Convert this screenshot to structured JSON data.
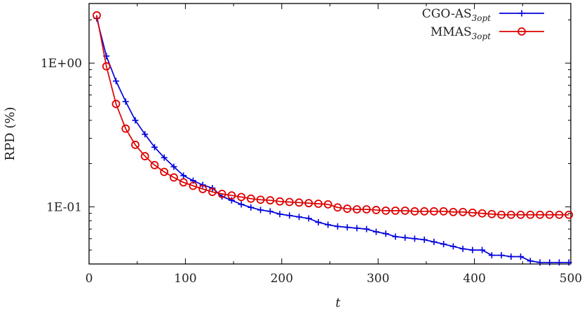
{
  "chart_data": {
    "type": "line",
    "title": "",
    "xlabel": "t",
    "ylabel": "RPD (%)",
    "xlim": [
      0,
      500
    ],
    "ylim": [
      0.04,
      2.6
    ],
    "yscale": "log",
    "xticks": [
      0,
      100,
      200,
      300,
      400,
      500
    ],
    "xtick_labels": [
      "0",
      "100",
      "200",
      "300",
      "400",
      "500"
    ],
    "yticks": [
      1.0,
      0.1
    ],
    "ytick_labels": [
      "1E+00",
      "1E-01"
    ],
    "legend_position": "top-right",
    "grid": false,
    "series": [
      {
        "name": "CGO-AS",
        "name_sub": "3opt",
        "color": "#0000dd",
        "marker": "plus",
        "x": [
          8,
          18,
          28,
          38,
          48,
          58,
          68,
          78,
          88,
          98,
          108,
          118,
          128,
          138,
          148,
          158,
          168,
          178,
          188,
          198,
          208,
          218,
          228,
          238,
          248,
          258,
          268,
          278,
          288,
          298,
          308,
          318,
          328,
          338,
          348,
          358,
          368,
          378,
          388,
          398,
          408,
          418,
          428,
          438,
          448,
          458,
          468,
          478,
          488,
          498
        ],
        "values": [
          2.05,
          1.12,
          0.75,
          0.54,
          0.4,
          0.32,
          0.26,
          0.22,
          0.19,
          0.165,
          0.152,
          0.142,
          0.135,
          0.118,
          0.111,
          0.104,
          0.099,
          0.095,
          0.093,
          0.089,
          0.087,
          0.085,
          0.083,
          0.078,
          0.075,
          0.073,
          0.072,
          0.071,
          0.07,
          0.067,
          0.065,
          0.062,
          0.061,
          0.06,
          0.059,
          0.057,
          0.055,
          0.053,
          0.051,
          0.05,
          0.05,
          0.046,
          0.046,
          0.045,
          0.045,
          0.042,
          0.041,
          0.041,
          0.041,
          0.041
        ]
      },
      {
        "name": "MMAS",
        "name_sub": "3opt",
        "color": "#dd0000",
        "marker": "circle",
        "x": [
          8,
          18,
          28,
          38,
          48,
          58,
          68,
          78,
          88,
          98,
          108,
          118,
          128,
          138,
          148,
          158,
          168,
          178,
          188,
          198,
          208,
          218,
          228,
          238,
          248,
          258,
          268,
          278,
          288,
          298,
          308,
          318,
          328,
          338,
          348,
          358,
          368,
          378,
          388,
          398,
          408,
          418,
          428,
          438,
          448,
          458,
          468,
          478,
          488,
          498
        ],
        "values": [
          2.15,
          0.95,
          0.52,
          0.35,
          0.27,
          0.225,
          0.195,
          0.175,
          0.16,
          0.148,
          0.14,
          0.133,
          0.127,
          0.123,
          0.12,
          0.117,
          0.114,
          0.112,
          0.111,
          0.109,
          0.108,
          0.107,
          0.106,
          0.105,
          0.104,
          0.099,
          0.097,
          0.096,
          0.096,
          0.095,
          0.094,
          0.094,
          0.094,
          0.093,
          0.093,
          0.093,
          0.093,
          0.092,
          0.092,
          0.091,
          0.09,
          0.089,
          0.088,
          0.088,
          0.088,
          0.088,
          0.088,
          0.088,
          0.088,
          0.088
        ]
      }
    ]
  }
}
